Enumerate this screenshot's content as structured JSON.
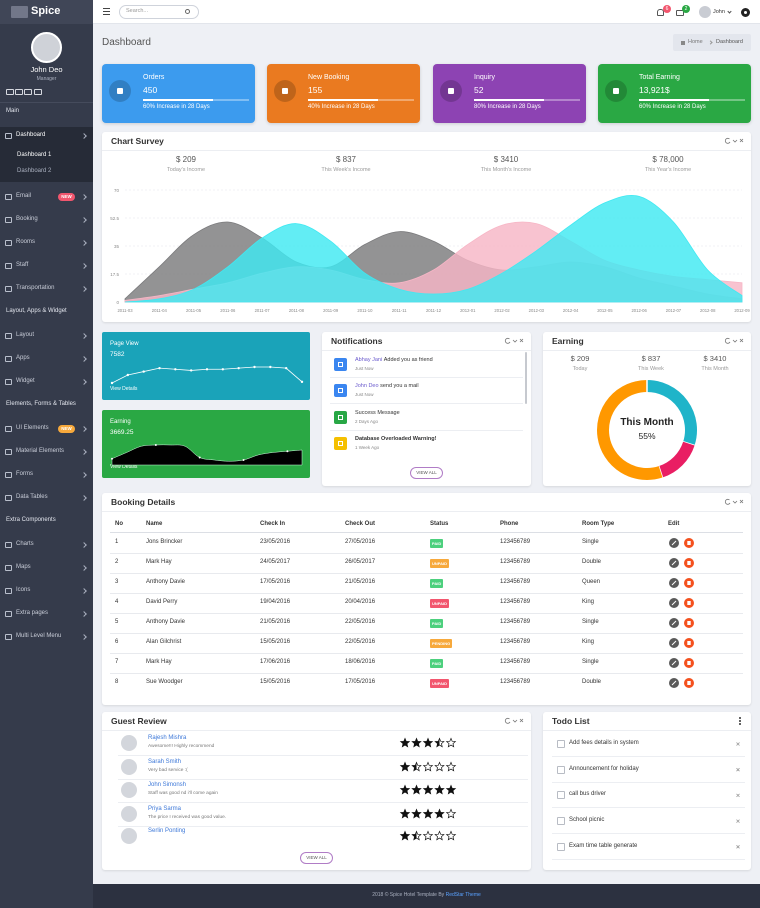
{
  "header": {
    "brand": "Spice",
    "search_placeholder": "Search...",
    "notifications": 6,
    "messages": 2,
    "user": "John"
  },
  "sidebar": {
    "user_name": "John Deo",
    "user_role": "Manager",
    "menu_groups": [
      {
        "title": "Main",
        "items": [
          {
            "label": "Dashboard",
            "active": true,
            "children": [
              "Dashboard 1",
              "Dashboard 2"
            ]
          },
          {
            "label": "Email",
            "badge": "NEW"
          },
          {
            "label": "Booking"
          },
          {
            "label": "Rooms"
          },
          {
            "label": "Staff"
          },
          {
            "label": "Transportation"
          }
        ]
      },
      {
        "title": "Layout, Apps & Widget",
        "items": [
          {
            "label": "Layout"
          },
          {
            "label": "Apps"
          },
          {
            "label": "Widget"
          }
        ]
      },
      {
        "title": "Elements, Forms & Tables",
        "items": [
          {
            "label": "UI Elements",
            "badge": "NEW"
          },
          {
            "label": "Material Elements"
          },
          {
            "label": "Forms"
          },
          {
            "label": "Data Tables"
          }
        ]
      },
      {
        "title": "Extra Components",
        "items": [
          {
            "label": "Charts"
          },
          {
            "label": "Maps"
          },
          {
            "label": "Icons"
          },
          {
            "label": "Extra pages"
          },
          {
            "label": "Multi Level Menu"
          }
        ]
      }
    ]
  },
  "page": {
    "title": "Dashboard",
    "breadcrumb": [
      "Home",
      "Dashboard"
    ]
  },
  "stat_cards": [
    {
      "title": "Orders",
      "value": 450,
      "note": "60% Increase in 28 Days",
      "color": "#3c9bee"
    },
    {
      "title": "New Booking",
      "value": 155,
      "note": "40% Increase in 28 Days",
      "color": "#ea7a20"
    },
    {
      "title": "Inquiry",
      "value": 52,
      "note": "80% Increase in 28 Days",
      "color": "#8d43b3"
    },
    {
      "title": "Total Earning",
      "value": "13,921$",
      "note": "60% Increase in 28 Days",
      "color": "#2aa844"
    }
  ],
  "chart_survey": {
    "title": "Chart Survey",
    "stats": [
      {
        "value": "$ 209",
        "label": "Today's Income"
      },
      {
        "value": "$ 837",
        "label": "This Week's Income"
      },
      {
        "value": "$ 3410",
        "label": "This Month's Income"
      },
      {
        "value": "$ 78,000",
        "label": "This Year's Income"
      }
    ],
    "chart": {
      "type": "area",
      "x": [
        "2011-03",
        "2011-04",
        "2011-05",
        "2011-06",
        "2011-07",
        "2011-08",
        "2011-09",
        "2011-10",
        "2011-11",
        "2011-12",
        "2012-01",
        "2012-02",
        "2012-03",
        "2012-04",
        "2012-05",
        "2012-06",
        "2012-07",
        "2012-08",
        "2012-09"
      ],
      "ylim": [
        0,
        70
      ],
      "yticks": [
        0,
        17.5,
        35,
        52.5,
        70
      ],
      "grid": true,
      "series": [
        {
          "color": "#7b7b7d",
          "values": [
            2,
            22,
            42,
            50,
            40,
            25,
            22,
            36,
            44,
            38,
            26,
            20,
            22,
            25,
            22,
            15,
            10,
            5,
            2
          ]
        },
        {
          "color": "#f7b6c6",
          "values": [
            1,
            4,
            8,
            12,
            18,
            22,
            20,
            14,
            12,
            20,
            36,
            48,
            49,
            38,
            26,
            20,
            16,
            14,
            12
          ]
        },
        {
          "color": "#3fe9f2",
          "values": [
            0,
            2,
            8,
            22,
            40,
            49,
            38,
            18,
            8,
            5,
            8,
            18,
            32,
            48,
            62,
            66,
            50,
            20,
            4
          ]
        }
      ]
    }
  },
  "mini_stats": [
    {
      "title": "Page View",
      "value": 7582,
      "link": "View Details",
      "color": "#1aa3b9",
      "values": [
        1,
        8,
        11,
        14,
        13,
        12,
        13,
        13,
        14,
        15,
        15,
        14,
        2
      ]
    },
    {
      "title": "Earning",
      "value": 3669.25,
      "link": "View Details",
      "color": "#2aa844",
      "values": [
        5,
        10,
        15,
        16,
        16,
        15,
        6,
        4,
        3,
        4,
        8,
        10,
        11,
        12
      ]
    }
  ],
  "notifications": {
    "title": "Notifications",
    "items": [
      {
        "who": "Abhay Jani",
        "text": "Added you as friend",
        "time": "Just Now",
        "color": "#3a86f0"
      },
      {
        "who": "John Deo",
        "text": "send you a mail",
        "time": "Just Now",
        "color": "#3a86f0"
      },
      {
        "text": "Success Message",
        "time": "2 Days Ago",
        "color": "#28a745"
      },
      {
        "text": "Database Overloaded Warning!",
        "time": "1 Week Ago",
        "color": "#f5c000"
      }
    ],
    "button": "VIEW ALL"
  },
  "earning": {
    "title": "Earning",
    "stats": [
      {
        "value": "$ 209",
        "label": "Today"
      },
      {
        "value": "$ 837",
        "label": "This Week"
      },
      {
        "value": "$ 3410",
        "label": "This Month"
      }
    ],
    "donut": {
      "label": "This Month",
      "value_label": "55%",
      "values": [
        30,
        15,
        55
      ],
      "colors": [
        "#1fb4c9",
        "#e91e63",
        "#ff9800"
      ]
    }
  },
  "booking": {
    "title": "Booking Details",
    "columns": [
      "No",
      "Name",
      "Check In",
      "Check Out",
      "Status",
      "Phone",
      "Room Type",
      "Edit"
    ],
    "rows": [
      [
        1,
        "Jons Brincker",
        "23/05/2016",
        "27/05/2016",
        "PAID",
        "123456789",
        "Single"
      ],
      [
        2,
        "Mark Hay",
        "24/05/2017",
        "26/05/2017",
        "UNPAID",
        "123456789",
        "Double"
      ],
      [
        3,
        "Anthony Davie",
        "17/05/2016",
        "21/05/2016",
        "PAID",
        "123456789",
        "Queen"
      ],
      [
        4,
        "David Perry",
        "19/04/2016",
        "20/04/2016",
        "UNPAID",
        "123456789",
        "King"
      ],
      [
        5,
        "Anthony Davie",
        "21/05/2016",
        "22/05/2016",
        "PAID",
        "123456789",
        "Single"
      ],
      [
        6,
        "Alan Gilchrist",
        "15/05/2016",
        "22/05/2016",
        "PENDING",
        "123456789",
        "King"
      ],
      [
        7,
        "Mark Hay",
        "17/06/2016",
        "18/06/2016",
        "PAID",
        "123456789",
        "Single"
      ],
      [
        8,
        "Sue Woodger",
        "15/05/2016",
        "17/05/2016",
        "UNPAID",
        "123456789",
        "Double"
      ]
    ],
    "status_colors": [
      "#4cd07d",
      "#f7a93c",
      "#4cd07d",
      "#f2566e",
      "#4cd07d",
      "#f7a93c",
      "#4cd07d",
      "#f2566e"
    ]
  },
  "reviews": {
    "title": "Guest Review",
    "items": [
      {
        "name": "Rajesh Mishra",
        "comment": "Awesome!!! Highly recommend",
        "rating": 3.5
      },
      {
        "name": "Sarah Smith",
        "comment": "Very bad service :(",
        "rating": 1.5
      },
      {
        "name": "John Simonsh",
        "comment": "Staff was good nd i'll come again",
        "rating": 5
      },
      {
        "name": "Priya Sarma",
        "comment": "The price I received was good value.",
        "rating": 4
      },
      {
        "name": "Serlin Ponting",
        "comment": "",
        "rating": 1.5
      }
    ],
    "button": "VIEW ALL"
  },
  "todo": {
    "title": "Todo List",
    "items": [
      "Add fees details in system",
      "Announcement for holiday",
      "call bus driver",
      "School picnic",
      "Exam time table generate"
    ]
  },
  "footer": {
    "text": "2018 © Spice Hotel Template By",
    "link": "RedStar Theme"
  }
}
